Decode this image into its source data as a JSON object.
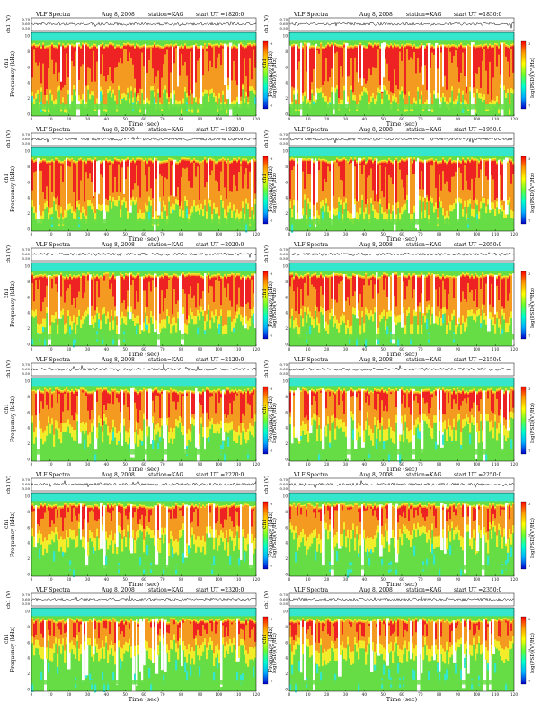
{
  "figure": {
    "panel_title": "VLF Spectra",
    "date": "Aug 8, 2008",
    "station": "station=KAG",
    "start_prefix": "start UT =",
    "waveform_ylabel": "ch1 (V)",
    "waveform_ticks": [
      "0.70",
      "0.60",
      "0.50"
    ],
    "freq_ylabel": "Frequency (kHz)",
    "freq_ticks": [
      "10",
      "8",
      "6",
      "4",
      "2",
      "0"
    ],
    "colorbar_label": "log(PSD)(V²/Hz)",
    "colorbar_ticks": [
      "-3",
      "-5",
      "-7"
    ],
    "time_label": "Time (sec)",
    "time_ticks": [
      "0",
      "10",
      "20",
      "30",
      "40",
      "50",
      "60",
      "70",
      "80",
      "90",
      "100",
      "110",
      "120"
    ]
  },
  "colors": {
    "bg_cyan": "#33e6cc",
    "green": "#66dd44",
    "yellow": "#f2ec2a",
    "orange": "#f59a20",
    "red": "#ee2222",
    "white": "#ffffff",
    "colorbar": [
      "#ff0000",
      "#ff9900",
      "#ffff00",
      "#66ff33",
      "#00ffcc",
      "#00aaff",
      "#0000cc"
    ]
  },
  "chart_data": [
    {
      "type": "heatmap",
      "start_ut": "1820:0",
      "xlim": [
        0,
        120
      ],
      "ylim": [
        0,
        10
      ],
      "xlabel": "Time (sec)",
      "ylabel": "Frequency (kHz)",
      "activity": 0.95
    },
    {
      "type": "heatmap",
      "start_ut": "1850:0",
      "xlim": [
        0,
        120
      ],
      "ylim": [
        0,
        10
      ],
      "xlabel": "Time (sec)",
      "ylabel": "Frequency (kHz)",
      "activity": 0.95
    },
    {
      "type": "heatmap",
      "start_ut": "1920:0",
      "xlim": [
        0,
        120
      ],
      "ylim": [
        0,
        10
      ],
      "xlabel": "Time (sec)",
      "ylabel": "Frequency (kHz)",
      "activity": 0.85
    },
    {
      "type": "heatmap",
      "start_ut": "1950:0",
      "xlim": [
        0,
        120
      ],
      "ylim": [
        0,
        10
      ],
      "xlabel": "Time (sec)",
      "ylabel": "Frequency (kHz)",
      "activity": 0.85
    },
    {
      "type": "heatmap",
      "start_ut": "2020:0",
      "xlim": [
        0,
        120
      ],
      "ylim": [
        0,
        10
      ],
      "xlabel": "Time (sec)",
      "ylabel": "Frequency (kHz)",
      "activity": 0.75
    },
    {
      "type": "heatmap",
      "start_ut": "2050:0",
      "xlim": [
        0,
        120
      ],
      "ylim": [
        0,
        10
      ],
      "xlabel": "Time (sec)",
      "ylabel": "Frequency (kHz)",
      "activity": 0.75
    },
    {
      "type": "heatmap",
      "start_ut": "2120:0",
      "xlim": [
        0,
        120
      ],
      "ylim": [
        0,
        10
      ],
      "xlabel": "Time (sec)",
      "ylabel": "Frequency (kHz)",
      "activity": 0.6
    },
    {
      "type": "heatmap",
      "start_ut": "2150:0",
      "xlim": [
        0,
        120
      ],
      "ylim": [
        0,
        10
      ],
      "xlabel": "Time (sec)",
      "ylabel": "Frequency (kHz)",
      "activity": 0.55
    },
    {
      "type": "heatmap",
      "start_ut": "2220:0",
      "xlim": [
        0,
        120
      ],
      "ylim": [
        0,
        10
      ],
      "xlabel": "Time (sec)",
      "ylabel": "Frequency (kHz)",
      "activity": 0.45
    },
    {
      "type": "heatmap",
      "start_ut": "2250:0",
      "xlim": [
        0,
        120
      ],
      "ylim": [
        0,
        10
      ],
      "xlabel": "Time (sec)",
      "ylabel": "Frequency (kHz)",
      "activity": 0.4
    },
    {
      "type": "heatmap",
      "start_ut": "2320:0",
      "xlim": [
        0,
        120
      ],
      "ylim": [
        0,
        10
      ],
      "xlabel": "Time (sec)",
      "ylabel": "Frequency (kHz)",
      "activity": 0.35
    },
    {
      "type": "heatmap",
      "start_ut": "2350:0",
      "xlim": [
        0,
        120
      ],
      "ylim": [
        0,
        10
      ],
      "xlabel": "Time (sec)",
      "ylabel": "Frequency (kHz)",
      "activity": 0.35
    }
  ]
}
